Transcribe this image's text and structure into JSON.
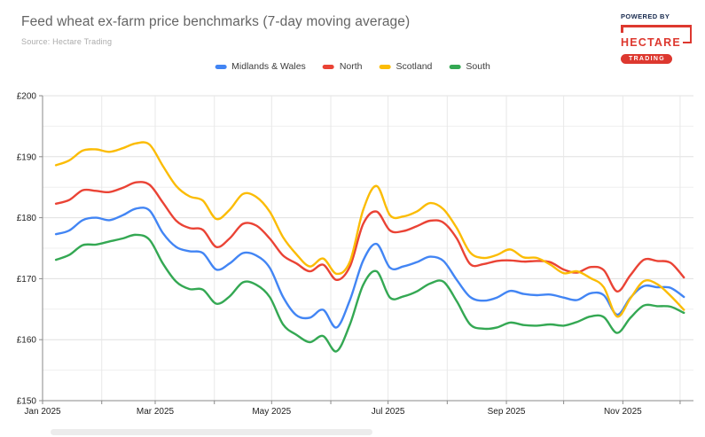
{
  "header": {
    "title": "Feed wheat ex-farm price benchmarks (7-day moving average)",
    "source": "Source: Hectare Trading"
  },
  "branding": {
    "powered_by": "POWERED BY",
    "name": "HECTARE",
    "badge": "TRADING",
    "brand_color": "#dd382f",
    "navy": "#182a4e"
  },
  "chart_data": {
    "type": "line",
    "title": "Feed wheat ex-farm price benchmarks (7-day moving average)",
    "xlabel": "",
    "ylabel": "",
    "currency": "£",
    "ylim": [
      150,
      200
    ],
    "y_tick_step": 10,
    "y_minor_step": 5,
    "y_tick_labels": [
      "£150",
      "£160",
      "£170",
      "£180",
      "£190",
      "£200"
    ],
    "x_start": "2025-01-01",
    "x_end_day": 341,
    "x_tick_labels": [
      "Jan 2025",
      "Mar 2025",
      "May 2025",
      "Jul 2025",
      "Sep 2025",
      "Nov 2025"
    ],
    "grid": true,
    "legend_position": "top",
    "dates": [
      "2025-01-08",
      "2025-01-15",
      "2025-01-22",
      "2025-01-29",
      "2025-02-05",
      "2025-02-12",
      "2025-02-19",
      "2025-02-26",
      "2025-03-05",
      "2025-03-12",
      "2025-03-19",
      "2025-03-26",
      "2025-04-02",
      "2025-04-09",
      "2025-04-16",
      "2025-04-23",
      "2025-04-30",
      "2025-05-07",
      "2025-05-14",
      "2025-05-21",
      "2025-05-28",
      "2025-06-04",
      "2025-06-11",
      "2025-06-18",
      "2025-06-25",
      "2025-07-02",
      "2025-07-09",
      "2025-07-16",
      "2025-07-23",
      "2025-07-30",
      "2025-08-06",
      "2025-08-13",
      "2025-08-20",
      "2025-08-27",
      "2025-09-03",
      "2025-09-10",
      "2025-09-17",
      "2025-09-24",
      "2025-10-01",
      "2025-10-08",
      "2025-10-15",
      "2025-10-22",
      "2025-10-29",
      "2025-11-05",
      "2025-11-12",
      "2025-11-19",
      "2025-11-26",
      "2025-12-03"
    ],
    "series": [
      {
        "name": "Midlands & Wales",
        "color": "#4285F4",
        "values": [
          177.3,
          177.9,
          179.6,
          180.0,
          179.6,
          180.4,
          181.5,
          181.2,
          177.5,
          175.2,
          174.5,
          174.2,
          171.5,
          172.5,
          174.2,
          173.8,
          171.8,
          167.0,
          164.0,
          163.6,
          164.9,
          162.0,
          166.5,
          173.0,
          175.7,
          171.8,
          172.0,
          172.7,
          173.6,
          172.9,
          169.8,
          167.0,
          166.4,
          166.9,
          168.0,
          167.5,
          167.3,
          167.4,
          166.9,
          166.5,
          167.6,
          167.3,
          164.1,
          166.9,
          168.8,
          168.6,
          168.5,
          167.0
        ]
      },
      {
        "name": "North",
        "color": "#EA4335",
        "values": [
          182.3,
          182.9,
          184.5,
          184.4,
          184.2,
          184.9,
          185.8,
          185.4,
          182.5,
          179.5,
          178.3,
          178.0,
          175.2,
          176.6,
          179.0,
          178.7,
          176.6,
          173.8,
          172.5,
          171.2,
          172.3,
          169.8,
          172.0,
          179.0,
          181.0,
          177.9,
          177.8,
          178.6,
          179.5,
          179.2,
          176.6,
          172.4,
          172.4,
          172.9,
          173.0,
          172.8,
          172.9,
          172.7,
          171.5,
          171.0,
          171.9,
          171.4,
          167.9,
          170.6,
          173.1,
          172.9,
          172.6,
          170.2
        ]
      },
      {
        "name": "Scotland",
        "color": "#FBBC05",
        "values": [
          188.6,
          189.4,
          191.0,
          191.2,
          190.8,
          191.4,
          192.2,
          192.0,
          188.5,
          185.2,
          183.5,
          182.8,
          179.8,
          181.3,
          183.9,
          183.4,
          181.0,
          176.8,
          174.0,
          172.0,
          173.3,
          170.8,
          172.8,
          181.3,
          185.2,
          180.4,
          180.2,
          181.0,
          182.4,
          181.4,
          178.3,
          174.3,
          173.4,
          173.9,
          174.8,
          173.5,
          173.4,
          172.3,
          170.9,
          171.2,
          170.1,
          168.6,
          163.8,
          166.8,
          169.6,
          169.1,
          167.2,
          164.9
        ]
      },
      {
        "name": "South",
        "color": "#34A853",
        "values": [
          173.1,
          173.9,
          175.5,
          175.6,
          176.1,
          176.6,
          177.2,
          176.4,
          172.5,
          169.5,
          168.3,
          168.2,
          165.9,
          167.1,
          169.4,
          169.0,
          167.0,
          162.5,
          160.8,
          159.6,
          160.6,
          158.1,
          162.5,
          169.0,
          171.2,
          166.9,
          167.1,
          167.9,
          169.2,
          169.5,
          166.3,
          162.5,
          161.8,
          162.0,
          162.8,
          162.4,
          162.3,
          162.5,
          162.3,
          162.9,
          163.8,
          163.7,
          161.1,
          163.6,
          165.6,
          165.5,
          165.4,
          164.4
        ]
      }
    ]
  }
}
